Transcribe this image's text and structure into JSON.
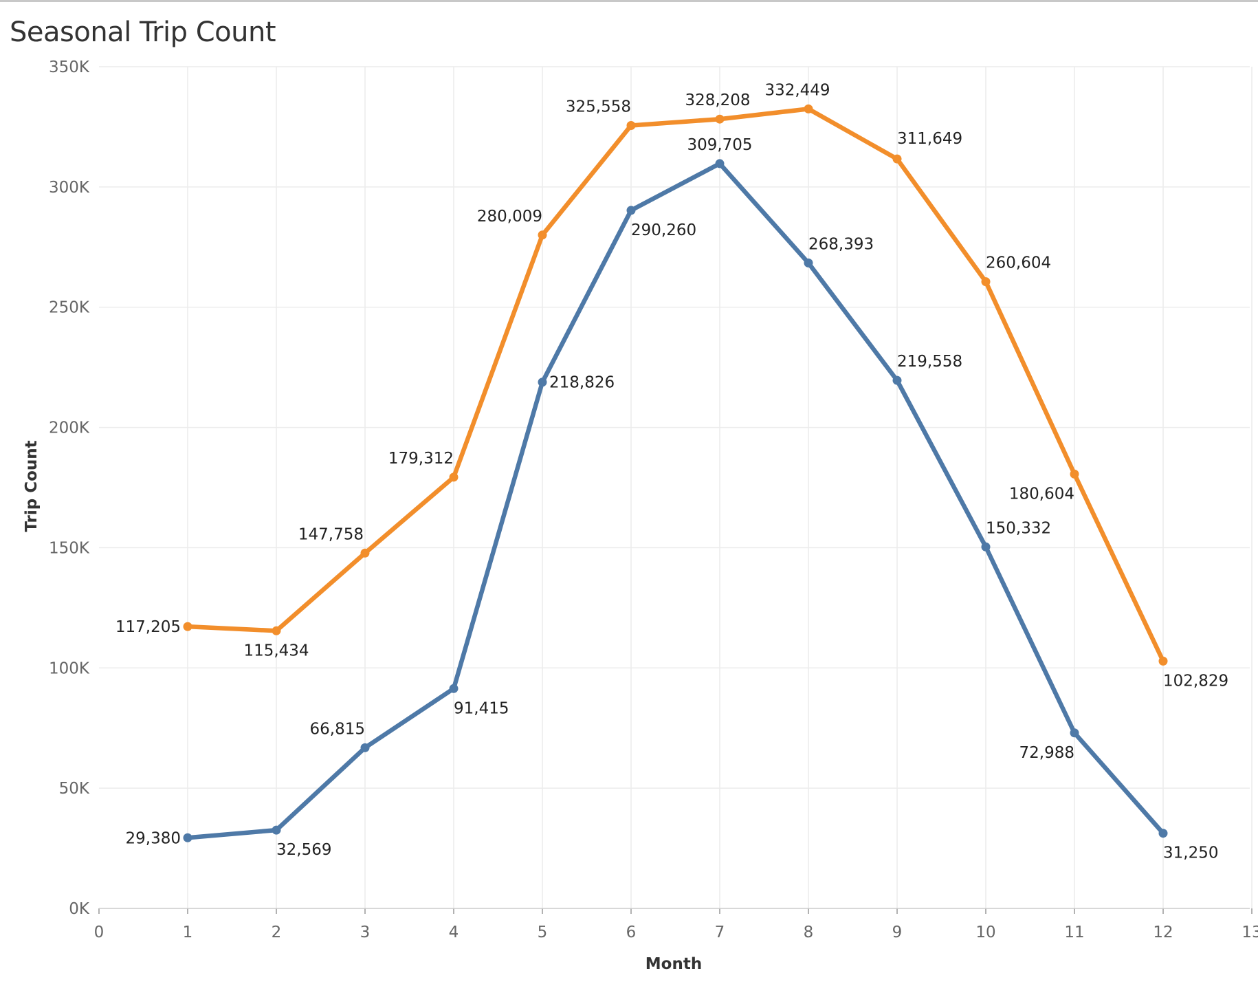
{
  "chart_data": {
    "type": "line",
    "title": "Seasonal Trip Count",
    "xlabel": "Month",
    "ylabel": "Trip Count",
    "xlim": [
      0,
      13
    ],
    "ylim": [
      0,
      350000
    ],
    "x_ticks": [
      "0",
      "1",
      "2",
      "3",
      "4",
      "5",
      "6",
      "7",
      "8",
      "9",
      "10",
      "11",
      "12",
      "13"
    ],
    "y_ticks": [
      "0K",
      "50K",
      "100K",
      "150K",
      "200K",
      "250K",
      "300K",
      "350K"
    ],
    "grid": true,
    "legend": "none",
    "x": [
      1,
      2,
      3,
      4,
      5,
      6,
      7,
      8,
      9,
      10,
      11,
      12
    ],
    "series": [
      {
        "color": "#F28E2B",
        "values": [
          117205,
          115434,
          147758,
          179312,
          280009,
          325558,
          328208,
          332449,
          311649,
          260604,
          180604,
          102829
        ],
        "labels": [
          "117,205",
          "115,434",
          "147,758",
          "179,312",
          "280,009",
          "325,558",
          "328,208",
          "332,449",
          "311,649",
          "260,604",
          "180,604",
          "102,829"
        ]
      },
      {
        "color": "#4E79A7",
        "values": [
          29380,
          32569,
          66815,
          91415,
          218826,
          290260,
          309705,
          268393,
          219558,
          150332,
          72988,
          31250
        ],
        "labels": [
          "29,380",
          "32,569",
          "66,815",
          "91,415",
          "218,826",
          "290,260",
          "309,705",
          "268,393",
          "219,558",
          "150,332",
          "72,988",
          "31,250"
        ]
      }
    ]
  }
}
